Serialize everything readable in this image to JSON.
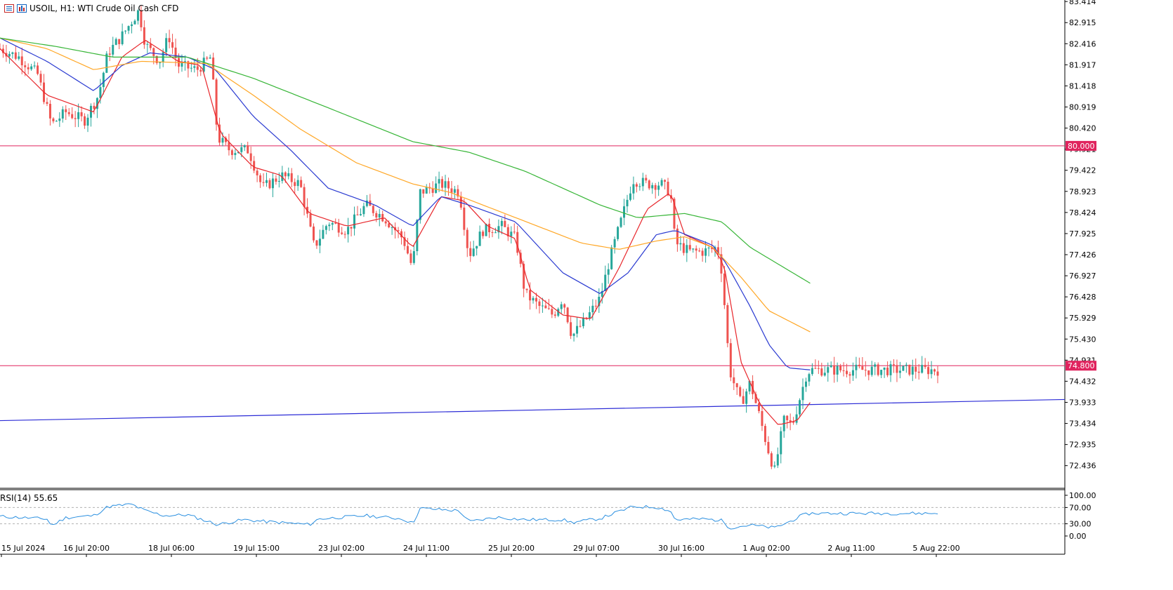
{
  "header": {
    "symbol": "USOIL, H1:",
    "description": "WTI Crude Oil Cash CFD"
  },
  "rsi": {
    "label": "RSI(14) 55.65",
    "levels": [
      "70.00",
      "30.00",
      "0.00",
      "100.00"
    ]
  },
  "colors": {
    "bull": "#26a69a",
    "bear": "#ef5350",
    "ma_fast": "#e8262b",
    "ma_mid": "#2a3ad1",
    "ma_slow": "#ffa726",
    "ma_long": "#36b536",
    "level": "#e0245e",
    "trend": "#2b2bd6",
    "rsi": "#2a8fe0"
  },
  "chart_data": {
    "type": "candlestick",
    "symbol": "USOIL",
    "timeframe": "H1",
    "ylim": [
      71.9,
      83.45
    ],
    "y_ticks": [
      "83.414",
      "82.915",
      "82.416",
      "81.917",
      "81.418",
      "80.919",
      "80.420",
      "79.921",
      "79.422",
      "78.923",
      "78.424",
      "77.925",
      "77.426",
      "76.927",
      "76.428",
      "75.929",
      "75.430",
      "74.931",
      "74.432",
      "73.933",
      "73.434",
      "72.935",
      "72.436"
    ],
    "x_ticks": [
      "15 Jul 2024",
      "16 Jul 20:00",
      "18 Jul 06:00",
      "19 Jul 15:00",
      "23 Jul 02:00",
      "24 Jul 11:00",
      "25 Jul 20:00",
      "29 Jul 07:00",
      "30 Jul 16:00",
      "1 Aug 02:00",
      "2 Aug 11:00",
      "5 Aug 22:00"
    ],
    "horizontal_levels": [
      {
        "label": "80.000",
        "value": 80.0
      },
      {
        "label": "74.800",
        "value": 74.8
      }
    ],
    "trendline": [
      {
        "x": 0,
        "y": 73.5
      },
      {
        "x": 1,
        "y": 74.0
      }
    ],
    "price_path": [
      [
        0,
        82.3
      ],
      [
        0.02,
        82.1
      ],
      [
        0.04,
        81.7
      ],
      [
        0.055,
        80.5
      ],
      [
        0.07,
        80.8
      ],
      [
        0.09,
        80.6
      ],
      [
        0.105,
        81.2
      ],
      [
        0.115,
        82.2
      ],
      [
        0.13,
        82.6
      ],
      [
        0.148,
        83.2
      ],
      [
        0.155,
        82.4
      ],
      [
        0.17,
        82.0
      ],
      [
        0.18,
        82.6
      ],
      [
        0.19,
        81.9
      ],
      [
        0.21,
        81.8
      ],
      [
        0.225,
        82.1
      ],
      [
        0.232,
        80.2
      ],
      [
        0.245,
        79.9
      ],
      [
        0.265,
        79.9
      ],
      [
        0.28,
        79.0
      ],
      [
        0.3,
        79.3
      ],
      [
        0.32,
        79.1
      ],
      [
        0.335,
        77.6
      ],
      [
        0.35,
        78.2
      ],
      [
        0.37,
        78.0
      ],
      [
        0.39,
        78.6
      ],
      [
        0.41,
        78.3
      ],
      [
        0.43,
        77.8
      ],
      [
        0.44,
        77.1
      ],
      [
        0.448,
        78.9
      ],
      [
        0.47,
        79.1
      ],
      [
        0.49,
        78.9
      ],
      [
        0.5,
        77.4
      ],
      [
        0.515,
        78.0
      ],
      [
        0.535,
        78.1
      ],
      [
        0.55,
        77.8
      ],
      [
        0.56,
        76.5
      ],
      [
        0.575,
        76.2
      ],
      [
        0.59,
        76.0
      ],
      [
        0.6,
        76.4
      ],
      [
        0.61,
        75.5
      ],
      [
        0.625,
        75.9
      ],
      [
        0.64,
        76.4
      ],
      [
        0.65,
        77.3
      ],
      [
        0.662,
        78.2
      ],
      [
        0.675,
        79.2
      ],
      [
        0.69,
        79.1
      ],
      [
        0.705,
        79.1
      ],
      [
        0.715,
        78.9
      ],
      [
        0.72,
        77.7
      ],
      [
        0.735,
        77.5
      ],
      [
        0.75,
        77.5
      ],
      [
        0.765,
        77.6
      ],
      [
        0.77,
        77.0
      ],
      [
        0.778,
        74.7
      ],
      [
        0.79,
        73.9
      ],
      [
        0.8,
        74.4
      ],
      [
        0.81,
        73.6
      ],
      [
        0.818,
        72.9
      ],
      [
        0.826,
        72.3
      ],
      [
        0.836,
        73.5
      ],
      [
        0.845,
        73.4
      ],
      [
        0.855,
        74.2
      ],
      [
        0.86,
        74.6
      ],
      [
        0.864,
        74.7
      ]
    ],
    "moving_averages": [
      {
        "color_key": "ma_fast",
        "points": [
          [
            0,
            82.3
          ],
          [
            0.05,
            81.2
          ],
          [
            0.1,
            80.8
          ],
          [
            0.13,
            82.1
          ],
          [
            0.155,
            82.5
          ],
          [
            0.19,
            82.0
          ],
          [
            0.215,
            81.9
          ],
          [
            0.235,
            80.3
          ],
          [
            0.27,
            79.5
          ],
          [
            0.3,
            79.3
          ],
          [
            0.33,
            78.4
          ],
          [
            0.37,
            78.1
          ],
          [
            0.41,
            78.3
          ],
          [
            0.44,
            77.6
          ],
          [
            0.47,
            78.8
          ],
          [
            0.495,
            78.7
          ],
          [
            0.52,
            78.1
          ],
          [
            0.55,
            77.8
          ],
          [
            0.565,
            76.6
          ],
          [
            0.6,
            76.0
          ],
          [
            0.63,
            75.9
          ],
          [
            0.66,
            77.1
          ],
          [
            0.69,
            78.5
          ],
          [
            0.715,
            78.9
          ],
          [
            0.73,
            77.9
          ],
          [
            0.76,
            77.6
          ],
          [
            0.772,
            77.2
          ],
          [
            0.79,
            74.9
          ],
          [
            0.81,
            73.9
          ],
          [
            0.83,
            73.4
          ],
          [
            0.85,
            73.5
          ],
          [
            0.864,
            73.93
          ]
        ]
      },
      {
        "color_key": "ma_mid",
        "points": [
          [
            0,
            82.55
          ],
          [
            0.05,
            82.0
          ],
          [
            0.1,
            81.3
          ],
          [
            0.13,
            81.9
          ],
          [
            0.16,
            82.2
          ],
          [
            0.2,
            82.1
          ],
          [
            0.23,
            81.8
          ],
          [
            0.27,
            80.7
          ],
          [
            0.31,
            79.9
          ],
          [
            0.35,
            79.0
          ],
          [
            0.4,
            78.6
          ],
          [
            0.44,
            78.1
          ],
          [
            0.47,
            78.8
          ],
          [
            0.5,
            78.6
          ],
          [
            0.55,
            78.2
          ],
          [
            0.6,
            77.0
          ],
          [
            0.64,
            76.5
          ],
          [
            0.67,
            77.0
          ],
          [
            0.7,
            77.9
          ],
          [
            0.72,
            78.0
          ],
          [
            0.76,
            77.65
          ],
          [
            0.775,
            77.2
          ],
          [
            0.8,
            76.2
          ],
          [
            0.82,
            75.3
          ],
          [
            0.84,
            74.75
          ],
          [
            0.864,
            74.7
          ]
        ]
      },
      {
        "color_key": "ma_slow",
        "points": [
          [
            0,
            82.55
          ],
          [
            0.05,
            82.3
          ],
          [
            0.1,
            81.8
          ],
          [
            0.15,
            82.0
          ],
          [
            0.22,
            81.95
          ],
          [
            0.27,
            81.2
          ],
          [
            0.32,
            80.4
          ],
          [
            0.38,
            79.6
          ],
          [
            0.44,
            79.1
          ],
          [
            0.48,
            78.9
          ],
          [
            0.55,
            78.3
          ],
          [
            0.62,
            77.7
          ],
          [
            0.66,
            77.55
          ],
          [
            0.7,
            77.75
          ],
          [
            0.73,
            77.85
          ],
          [
            0.76,
            77.6
          ],
          [
            0.79,
            76.9
          ],
          [
            0.82,
            76.1
          ],
          [
            0.864,
            75.6
          ]
        ]
      },
      {
        "color_key": "ma_long",
        "points": [
          [
            0,
            82.55
          ],
          [
            0.06,
            82.35
          ],
          [
            0.12,
            82.1
          ],
          [
            0.2,
            82.1
          ],
          [
            0.27,
            81.6
          ],
          [
            0.35,
            80.9
          ],
          [
            0.44,
            80.1
          ],
          [
            0.5,
            79.85
          ],
          [
            0.56,
            79.4
          ],
          [
            0.64,
            78.6
          ],
          [
            0.68,
            78.3
          ],
          [
            0.73,
            78.4
          ],
          [
            0.77,
            78.2
          ],
          [
            0.8,
            77.6
          ],
          [
            0.864,
            76.75
          ]
        ]
      }
    ],
    "rsi_path": [
      [
        0,
        48
      ],
      [
        0.05,
        42
      ],
      [
        0.055,
        25
      ],
      [
        0.07,
        45
      ],
      [
        0.1,
        50
      ],
      [
        0.115,
        72
      ],
      [
        0.14,
        78
      ],
      [
        0.155,
        62
      ],
      [
        0.175,
        50
      ],
      [
        0.2,
        52
      ],
      [
        0.232,
        28
      ],
      [
        0.26,
        40
      ],
      [
        0.28,
        36
      ],
      [
        0.33,
        28
      ],
      [
        0.34,
        42
      ],
      [
        0.39,
        50
      ],
      [
        0.43,
        42
      ],
      [
        0.44,
        30
      ],
      [
        0.448,
        68
      ],
      [
        0.49,
        62
      ],
      [
        0.5,
        35
      ],
      [
        0.53,
        46
      ],
      [
        0.56,
        40
      ],
      [
        0.6,
        40
      ],
      [
        0.61,
        33
      ],
      [
        0.64,
        43
      ],
      [
        0.66,
        60
      ],
      [
        0.675,
        72
      ],
      [
        0.7,
        71
      ],
      [
        0.715,
        62
      ],
      [
        0.72,
        40
      ],
      [
        0.75,
        42
      ],
      [
        0.77,
        38
      ],
      [
        0.778,
        20
      ],
      [
        0.8,
        27
      ],
      [
        0.818,
        22
      ],
      [
        0.826,
        20
      ],
      [
        0.84,
        33
      ],
      [
        0.855,
        50
      ],
      [
        0.864,
        55.65
      ]
    ]
  }
}
